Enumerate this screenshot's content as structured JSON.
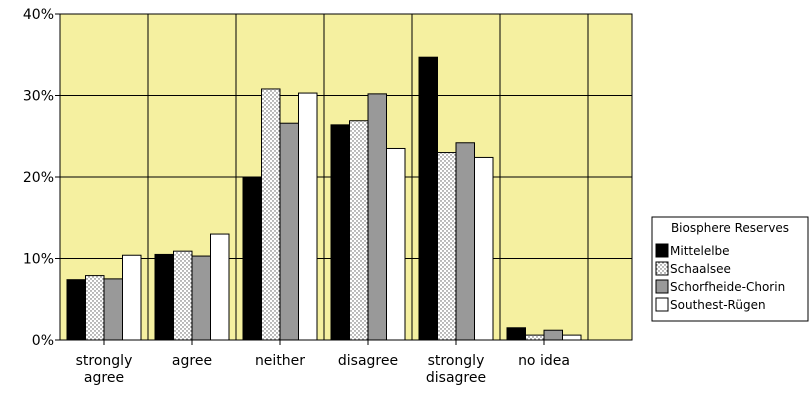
{
  "chart_data": {
    "type": "bar",
    "categories": [
      [
        "strongly",
        "agree"
      ],
      [
        "agree"
      ],
      [
        "neither"
      ],
      [
        "disagree"
      ],
      [
        "strongly",
        "disagree"
      ],
      [
        "no idea"
      ]
    ],
    "series": [
      {
        "name": "Mittelelbe",
        "values": [
          7.4,
          10.5,
          19.9,
          26.4,
          34.7,
          1.5
        ],
        "fill": "#000000",
        "pattern": "solid"
      },
      {
        "name": "Schaalsee",
        "values": [
          7.9,
          10.9,
          30.8,
          26.9,
          23.0,
          0.6
        ],
        "fill": "#ffffff",
        "pattern": "dots"
      },
      {
        "name": "Schorfheide-Chorin",
        "values": [
          7.5,
          10.3,
          26.6,
          30.2,
          24.2,
          1.2
        ],
        "fill": "#999999",
        "pattern": "solid"
      },
      {
        "name": "Southest-Rügen",
        "values": [
          10.4,
          13.0,
          30.3,
          23.5,
          22.4,
          0.6
        ],
        "fill": "#ffffff",
        "pattern": "solid"
      }
    ],
    "yticks": [
      "0%",
      "10%",
      "20%",
      "30%",
      "40%"
    ],
    "ylim": [
      0,
      40
    ],
    "grid": true,
    "plot_background": "#f5f0a0",
    "legend": {
      "title": "Biosphere Reserves",
      "placement": "right"
    }
  }
}
